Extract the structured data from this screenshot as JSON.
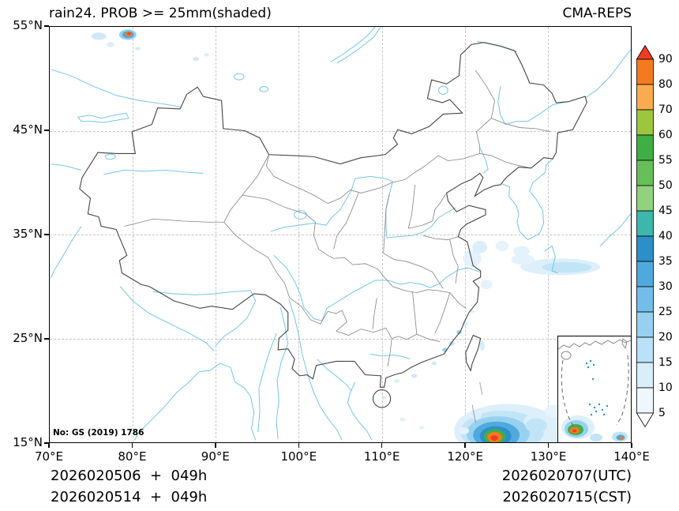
{
  "header": {
    "title": "rain24. PROB >= 25mm(shaded)",
    "model": "CMA-REPS"
  },
  "axes": {
    "x_ticks": [
      "70°E",
      "80°E",
      "90°E",
      "100°E",
      "110°E",
      "120°E",
      "130°E",
      "140°E"
    ],
    "y_ticks": [
      "55°N",
      "45°N",
      "35°N",
      "25°N",
      "15°N"
    ]
  },
  "colorbar": {
    "labels": [
      "90",
      "80",
      "70",
      "60",
      "55",
      "50",
      "45",
      "40",
      "35",
      "30",
      "25",
      "20",
      "15",
      "10",
      "5"
    ],
    "segment_colors": [
      "#f5791f",
      "#fbab4f",
      "#9cc63e",
      "#3fae44",
      "#66bf58",
      "#92d17d",
      "#3db6ab",
      "#2d8fca",
      "#4fa9dc",
      "#73bee8",
      "#97d1f0",
      "#b9e1f7",
      "#d8eefb",
      "#eef7fd"
    ],
    "arrow_top_color": "#ee3d24",
    "arrow_bottom_color": "#ffffff"
  },
  "map": {
    "license": "No: GS (2019) 1786"
  },
  "footer": {
    "left1": "2026020506  +  049h",
    "left2": "2026020514  +  049h",
    "right1": "2026020707(UTC)",
    "right2": "2026020715(CST)"
  }
}
